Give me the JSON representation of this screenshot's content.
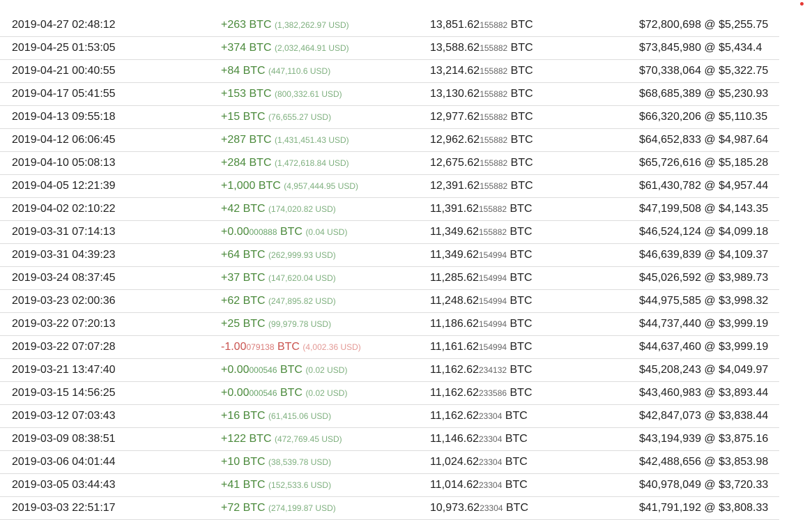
{
  "colors": {
    "positive": "#4b8a3c",
    "negative": "#c9534f",
    "indicator": "#e53935"
  },
  "rows": [
    {
      "time": "2019-04-27 02:48:12",
      "sign": "pos",
      "amount": "+263",
      "amount_small": "",
      "unit": " BTC",
      "usd": "(1,382,262.97 USD)",
      "balance": "13,851.62",
      "balance_small": "155882",
      "balance_unit": " BTC",
      "value": "$72,800,698 @ $5,255.75"
    },
    {
      "time": "2019-04-25 01:53:05",
      "sign": "pos",
      "amount": "+374",
      "amount_small": "",
      "unit": " BTC",
      "usd": "(2,032,464.91 USD)",
      "balance": "13,588.62",
      "balance_small": "155882",
      "balance_unit": " BTC",
      "value": "$73,845,980 @ $5,434.4"
    },
    {
      "time": "2019-04-21 00:40:55",
      "sign": "pos",
      "amount": "+84",
      "amount_small": "",
      "unit": " BTC",
      "usd": "(447,110.6 USD)",
      "balance": "13,214.62",
      "balance_small": "155882",
      "balance_unit": " BTC",
      "value": "$70,338,064 @ $5,322.75"
    },
    {
      "time": "2019-04-17 05:41:55",
      "sign": "pos",
      "amount": "+153",
      "amount_small": "",
      "unit": " BTC",
      "usd": "(800,332.61 USD)",
      "balance": "13,130.62",
      "balance_small": "155882",
      "balance_unit": " BTC",
      "value": "$68,685,389 @ $5,230.93"
    },
    {
      "time": "2019-04-13 09:55:18",
      "sign": "pos",
      "amount": "+15",
      "amount_small": "",
      "unit": " BTC",
      "usd": "(76,655.27 USD)",
      "balance": "12,977.62",
      "balance_small": "155882",
      "balance_unit": " BTC",
      "value": "$66,320,206 @ $5,110.35"
    },
    {
      "time": "2019-04-12 06:06:45",
      "sign": "pos",
      "amount": "+287",
      "amount_small": "",
      "unit": " BTC",
      "usd": "(1,431,451.43 USD)",
      "balance": "12,962.62",
      "balance_small": "155882",
      "balance_unit": " BTC",
      "value": "$64,652,833 @ $4,987.64"
    },
    {
      "time": "2019-04-10 05:08:13",
      "sign": "pos",
      "amount": "+284",
      "amount_small": "",
      "unit": " BTC",
      "usd": "(1,472,618.84 USD)",
      "balance": "12,675.62",
      "balance_small": "155882",
      "balance_unit": " BTC",
      "value": "$65,726,616 @ $5,185.28"
    },
    {
      "time": "2019-04-05 12:21:39",
      "sign": "pos",
      "amount": "+1,000",
      "amount_small": "",
      "unit": " BTC",
      "usd": "(4,957,444.95 USD)",
      "balance": "12,391.62",
      "balance_small": "155882",
      "balance_unit": " BTC",
      "value": "$61,430,782 @ $4,957.44"
    },
    {
      "time": "2019-04-02 02:10:22",
      "sign": "pos",
      "amount": "+42",
      "amount_small": "",
      "unit": " BTC",
      "usd": "(174,020.82 USD)",
      "balance": "11,391.62",
      "balance_small": "155882",
      "balance_unit": " BTC",
      "value": "$47,199,508 @ $4,143.35"
    },
    {
      "time": "2019-03-31 07:14:13",
      "sign": "pos",
      "amount": "+0.00",
      "amount_small": "000888",
      "unit": " BTC",
      "usd": "(0.04 USD)",
      "balance": "11,349.62",
      "balance_small": "155882",
      "balance_unit": " BTC",
      "value": "$46,524,124 @ $4,099.18"
    },
    {
      "time": "2019-03-31 04:39:23",
      "sign": "pos",
      "amount": "+64",
      "amount_small": "",
      "unit": " BTC",
      "usd": "(262,999.93 USD)",
      "balance": "11,349.62",
      "balance_small": "154994",
      "balance_unit": " BTC",
      "value": "$46,639,839 @ $4,109.37"
    },
    {
      "time": "2019-03-24 08:37:45",
      "sign": "pos",
      "amount": "+37",
      "amount_small": "",
      "unit": " BTC",
      "usd": "(147,620.04 USD)",
      "balance": "11,285.62",
      "balance_small": "154994",
      "balance_unit": " BTC",
      "value": "$45,026,592 @ $3,989.73"
    },
    {
      "time": "2019-03-23 02:00:36",
      "sign": "pos",
      "amount": "+62",
      "amount_small": "",
      "unit": " BTC",
      "usd": "(247,895.82 USD)",
      "balance": "11,248.62",
      "balance_small": "154994",
      "balance_unit": " BTC",
      "value": "$44,975,585 @ $3,998.32"
    },
    {
      "time": "2019-03-22 07:20:13",
      "sign": "pos",
      "amount": "+25",
      "amount_small": "",
      "unit": " BTC",
      "usd": "(99,979.78 USD)",
      "balance": "11,186.62",
      "balance_small": "154994",
      "balance_unit": " BTC",
      "value": "$44,737,440 @ $3,999.19"
    },
    {
      "time": "2019-03-22 07:07:28",
      "sign": "neg",
      "amount": "-1.00",
      "amount_small": "079138",
      "unit": " BTC",
      "usd": "(4,002.36 USD)",
      "balance": "11,161.62",
      "balance_small": "154994",
      "balance_unit": " BTC",
      "value": "$44,637,460 @ $3,999.19"
    },
    {
      "time": "2019-03-21 13:47:40",
      "sign": "pos",
      "amount": "+0.00",
      "amount_small": "000546",
      "unit": " BTC",
      "usd": "(0.02 USD)",
      "balance": "11,162.62",
      "balance_small": "234132",
      "balance_unit": " BTC",
      "value": "$45,208,243 @ $4,049.97"
    },
    {
      "time": "2019-03-15 14:56:25",
      "sign": "pos",
      "amount": "+0.00",
      "amount_small": "000546",
      "unit": " BTC",
      "usd": "(0.02 USD)",
      "balance": "11,162.62",
      "balance_small": "233586",
      "balance_unit": " BTC",
      "value": "$43,460,983 @ $3,893.44"
    },
    {
      "time": "2019-03-12 07:03:43",
      "sign": "pos",
      "amount": "+16",
      "amount_small": "",
      "unit": " BTC",
      "usd": "(61,415.06 USD)",
      "balance": "11,162.62",
      "balance_small": "23304",
      "balance_unit": " BTC",
      "value": "$42,847,073 @ $3,838.44"
    },
    {
      "time": "2019-03-09 08:38:51",
      "sign": "pos",
      "amount": "+122",
      "amount_small": "",
      "unit": " BTC",
      "usd": "(472,769.45 USD)",
      "balance": "11,146.62",
      "balance_small": "23304",
      "balance_unit": " BTC",
      "value": "$43,194,939 @ $3,875.16"
    },
    {
      "time": "2019-03-06 04:01:44",
      "sign": "pos",
      "amount": "+10",
      "amount_small": "",
      "unit": " BTC",
      "usd": "(38,539.78 USD)",
      "balance": "11,024.62",
      "balance_small": "23304",
      "balance_unit": " BTC",
      "value": "$42,488,656 @ $3,853.98"
    },
    {
      "time": "2019-03-05 03:44:43",
      "sign": "pos",
      "amount": "+41",
      "amount_small": "",
      "unit": " BTC",
      "usd": "(152,533.6 USD)",
      "balance": "11,014.62",
      "balance_small": "23304",
      "balance_unit": " BTC",
      "value": "$40,978,049 @ $3,720.33"
    },
    {
      "time": "2019-03-03 22:51:17",
      "sign": "pos",
      "amount": "+72",
      "amount_small": "",
      "unit": " BTC",
      "usd": "(274,199.87 USD)",
      "balance": "10,973.62",
      "balance_small": "23304",
      "balance_unit": " BTC",
      "value": "$41,791,192 @ $3,808.33"
    }
  ]
}
